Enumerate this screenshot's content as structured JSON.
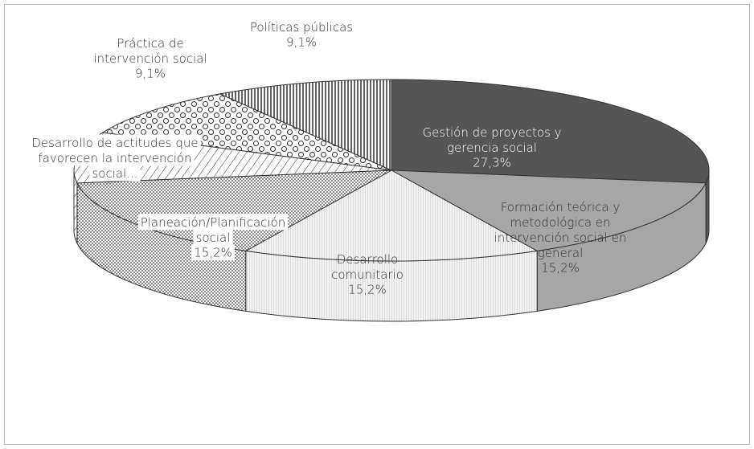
{
  "chart_data": {
    "type": "pie3d",
    "categories": [
      "Gestión de proyectos y gerencia social",
      "Formación teórica y metodológica en intervención social en general",
      "Desarrollo comunitario",
      "Planeación/Planificación social",
      "Desarrollo de actitudes que favorecen la intervención social...",
      "Práctica de intervención social",
      "Políticas públicas"
    ],
    "values": [
      27.3,
      15.2,
      15.2,
      15.2,
      9.1,
      9.1,
      9.1
    ],
    "value_labels": [
      "27,3%",
      "15,2%",
      "15,2%",
      "15,2%",
      null,
      "9,1%",
      "9,1%"
    ],
    "colors": [
      "#555555",
      "#a6a6a6",
      "#f2f2f2",
      "#ffffff",
      "#ffffff",
      "#ffffff",
      "#ffffff"
    ]
  }
}
